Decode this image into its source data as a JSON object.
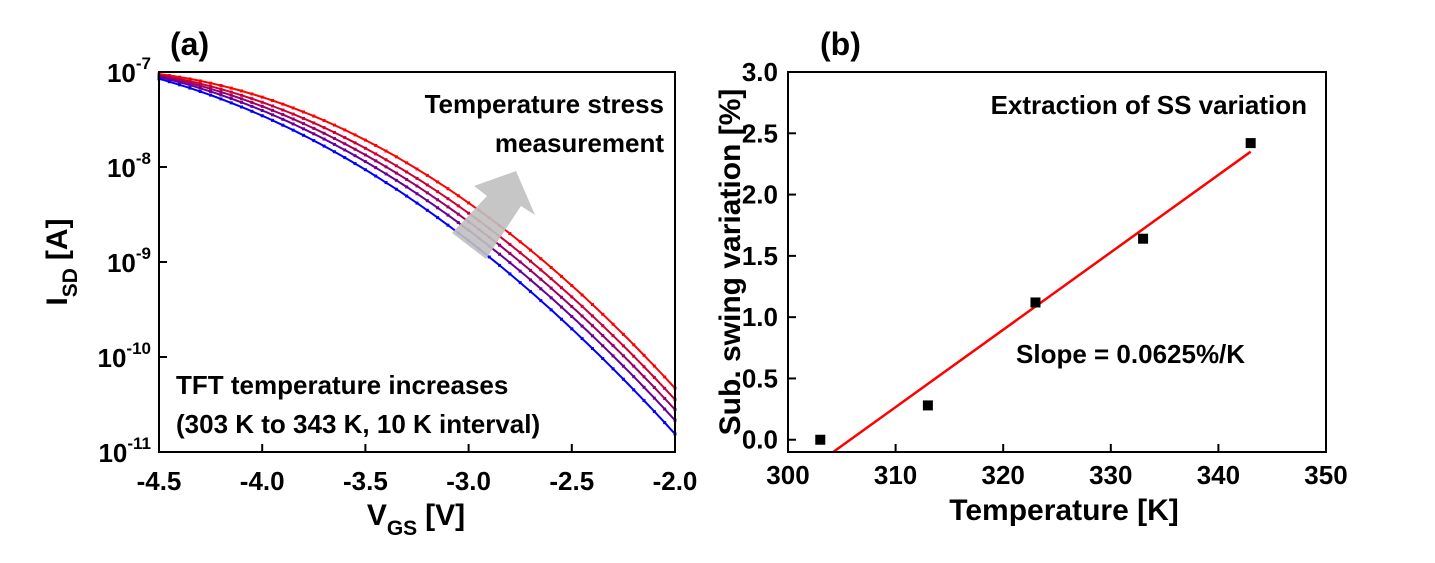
{
  "chart_data": [
    {
      "panel_label": "(a)",
      "type": "line",
      "xlabel_main": "V",
      "xlabel_sub": "GS",
      "xlabel_unit": "[V]",
      "ylabel_main": "I",
      "ylabel_sub": "SD",
      "ylabel_unit": "[A]",
      "xlim": [
        -4.5,
        -2.0
      ],
      "ylim": [
        1e-11,
        1e-07
      ],
      "yscale": "log",
      "xticks": [
        -4.5,
        -4.0,
        -3.5,
        -3.0,
        -2.5,
        -2.0
      ],
      "xtick_labels": [
        "-4.5",
        "-4.0",
        "-3.5",
        "-3.0",
        "-2.5",
        "-2.0"
      ],
      "ytick_labels": [
        {
          "base": "10",
          "exp": "-7",
          "value": 1e-07
        },
        {
          "base": "10",
          "exp": "-8",
          "value": 1e-08
        },
        {
          "base": "10",
          "exp": "-9",
          "value": 1e-09
        },
        {
          "base": "10",
          "exp": "-10",
          "value": 1e-10
        },
        {
          "base": "10",
          "exp": "-11",
          "value": 1e-11
        }
      ],
      "series": [
        {
          "color": "#ff0000",
          "x": [
            -4.5,
            -4.0,
            -3.5,
            -3.0,
            -2.5,
            -2.0
          ],
          "y": [
            1e-07,
            5e-08,
            1.9e-08,
            4.3e-09,
            6e-10,
            4.5e-11
          ]
        },
        {
          "color": "#cc0033",
          "x": [
            -4.5,
            -4.0,
            -3.5,
            -3.0,
            -2.5,
            -2.0
          ],
          "y": [
            9.6e-08,
            4.5e-08,
            1.6e-08,
            3.3e-09,
            4.4e-10,
            3.5e-11
          ]
        },
        {
          "color": "#990066",
          "x": [
            -4.5,
            -4.0,
            -3.5,
            -3.0,
            -2.5,
            -2.0
          ],
          "y": [
            9.2e-08,
            4.2e-08,
            1.4e-08,
            2.6e-09,
            3.4e-10,
            2.8e-11
          ]
        },
        {
          "color": "#660099",
          "x": [
            -4.5,
            -4.0,
            -3.5,
            -3.0,
            -2.5,
            -2.0
          ],
          "y": [
            8.8e-08,
            3.9e-08,
            1.2e-08,
            2.1e-09,
            2.6e-10,
            2.2e-11
          ]
        },
        {
          "color": "#0000ff",
          "x": [
            -4.5,
            -4.0,
            -3.5,
            -3.0,
            -2.5,
            -2.0
          ],
          "y": [
            8.3e-08,
            3.5e-08,
            1e-08,
            1.6e-09,
            1.9e-10,
            1.6e-11
          ]
        }
      ],
      "annotations": {
        "stress_line1": "Temperature stress",
        "stress_line2": "measurement",
        "increase_line1": "TFT temperature increases",
        "increase_line2": "(303 K to 343 K, 10 K interval)"
      },
      "grid": false,
      "legend": "none"
    },
    {
      "panel_label": "(b)",
      "type": "scatter",
      "xlabel": "Temperature [K]",
      "ylabel": "Sub. swing variation [%]",
      "xlim": [
        300,
        350
      ],
      "ylim": [
        -0.1,
        3.0
      ],
      "xticks": [
        300,
        310,
        320,
        330,
        340,
        350
      ],
      "yticks": [
        0.0,
        0.5,
        1.0,
        1.5,
        2.0,
        2.5,
        3.0
      ],
      "xtick_labels": [
        "300",
        "310",
        "320",
        "330",
        "340",
        "350"
      ],
      "ytick_labels": [
        "0.0",
        "0.5",
        "1.0",
        "1.5",
        "2.0",
        "2.5",
        "3.0"
      ],
      "points": {
        "x": [
          303,
          313,
          323,
          333,
          343
        ],
        "y": [
          0.0,
          0.28,
          1.12,
          1.64,
          2.42
        ]
      },
      "fit": {
        "color": "#ff0000",
        "x": [
          304.2,
          343.0
        ],
        "y": [
          -0.1,
          2.35
        ]
      },
      "annotations": {
        "title": "Extraction of SS variation",
        "slope": "Slope = 0.0625%/K"
      },
      "grid": false,
      "legend": "none"
    }
  ]
}
